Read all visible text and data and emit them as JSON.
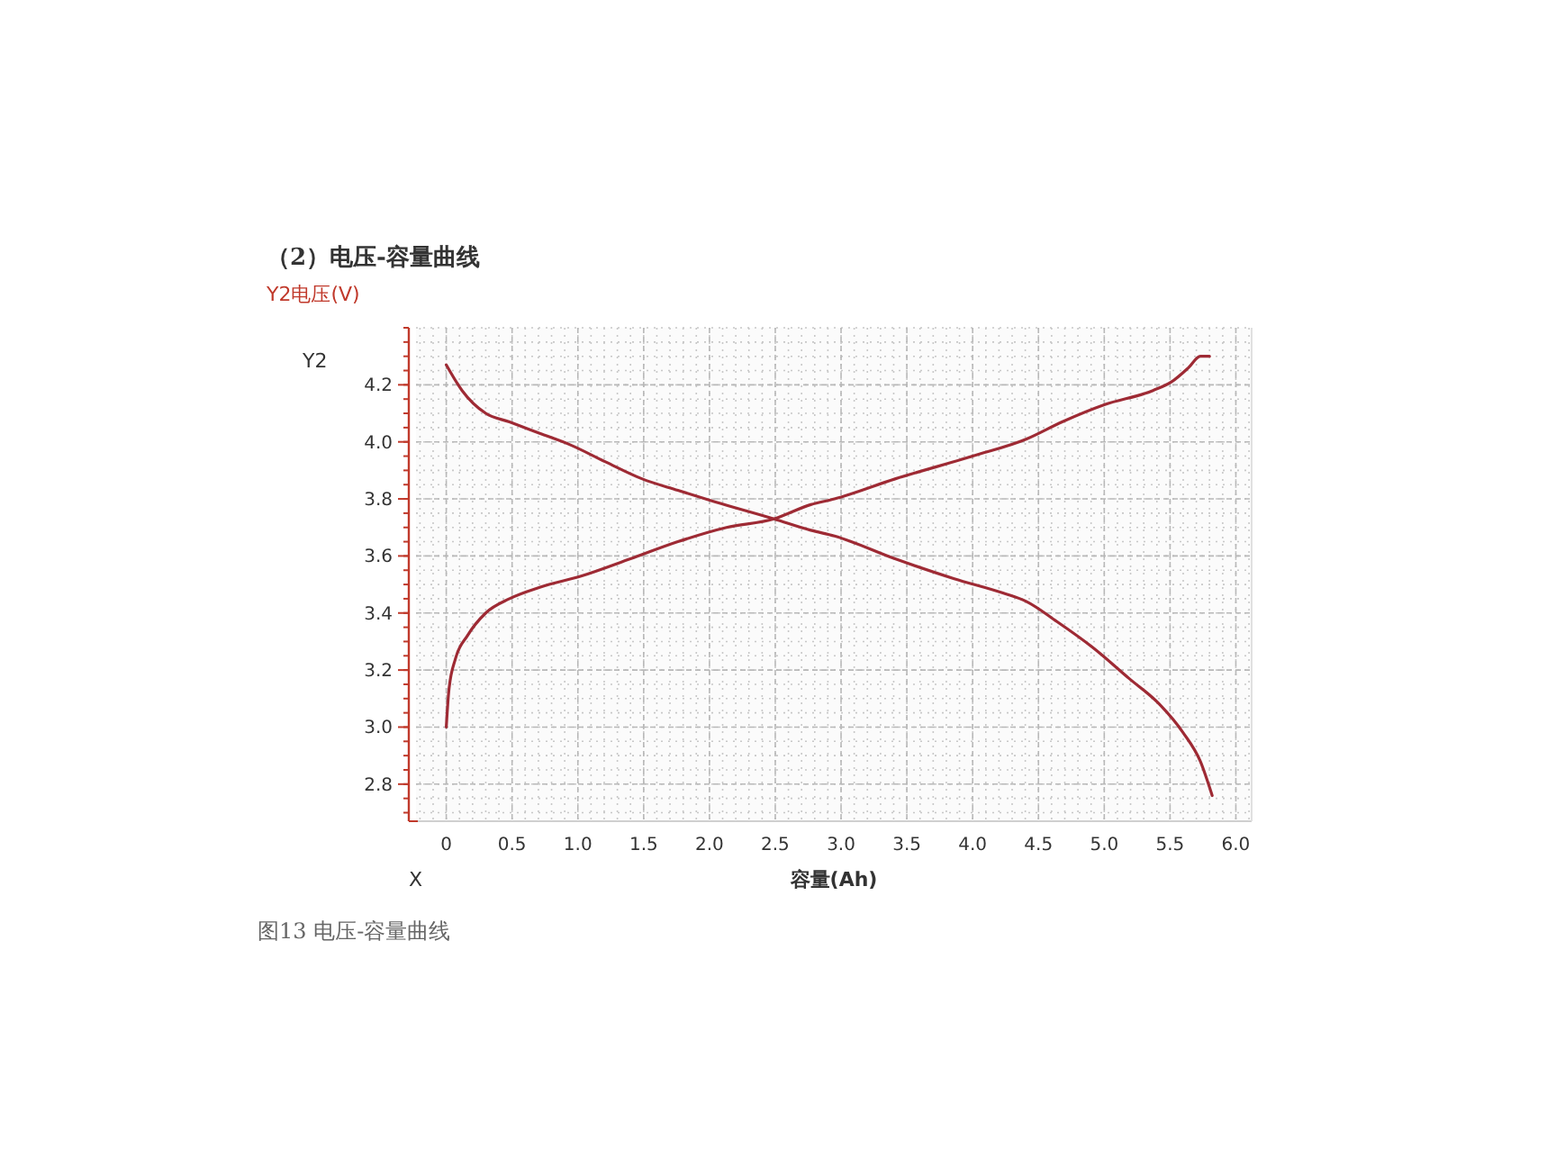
{
  "chart_data": {
    "type": "line",
    "title": "（2）电压-容量曲线",
    "ylabel": "Y2电压(V)",
    "xlabel": "容量(Ah)",
    "annotations": [
      "Y2",
      "X",
      "图13 电压-容量曲线"
    ],
    "xlim": [
      -0.23,
      6.12
    ],
    "ylim": [
      2.67,
      4.4
    ],
    "xticks": [
      0,
      0.5,
      {
        "value": 1,
        "label": "1.0"
      },
      1.5,
      {
        "value": 2,
        "label": "2.0"
      },
      2.5,
      {
        "value": 3,
        "label": "3.0"
      },
      3.5,
      {
        "value": 4,
        "label": "4.0"
      },
      4.5,
      {
        "value": 5,
        "label": "5.0"
      },
      5.5,
      {
        "value": 6,
        "label": "6.0"
      }
    ],
    "yticks": [
      2.8,
      {
        "value": 3,
        "label": "3.0"
      },
      3.2,
      3.4,
      3.6,
      3.8,
      {
        "value": 4,
        "label": "4.0"
      },
      4.2
    ],
    "grid": true,
    "line_style": "solid",
    "series": [
      {
        "color": "#9e2a34",
        "x": [
          0,
          0.12,
          0.3,
          0.48,
          0.71,
          0.94,
          1.21,
          1.49,
          1.76,
          2.04,
          2.49,
          2.77,
          2.95,
          3.41,
          3.86,
          4.23,
          4.41,
          4.64,
          4.91,
          5.19,
          5.42,
          5.6,
          5.73,
          5.82
        ],
        "values": [
          4.27,
          4.18,
          4.1,
          4.07,
          4.03,
          3.99,
          3.93,
          3.87,
          3.83,
          3.79,
          3.73,
          3.69,
          3.67,
          3.59,
          3.52,
          3.47,
          3.44,
          3.37,
          3.28,
          3.17,
          3.08,
          2.98,
          2.88,
          2.76
        ]
      },
      {
        "color": "#9e2a34",
        "x": [
          0,
          0.02,
          0.07,
          0.16,
          0.3,
          0.48,
          0.71,
          1.03,
          1.4,
          1.76,
          2.13,
          2.49,
          2.77,
          2.95,
          3.41,
          4.0,
          4.41,
          4.68,
          5.0,
          5.37,
          5.51,
          5.64,
          5.73,
          5.8
        ],
        "values": [
          3.0,
          3.13,
          3.24,
          3.32,
          3.4,
          3.45,
          3.49,
          3.53,
          3.59,
          3.65,
          3.7,
          3.73,
          3.78,
          3.8,
          3.87,
          3.95,
          4.01,
          4.07,
          4.13,
          4.18,
          4.21,
          4.26,
          4.3,
          4.3
        ]
      }
    ]
  }
}
